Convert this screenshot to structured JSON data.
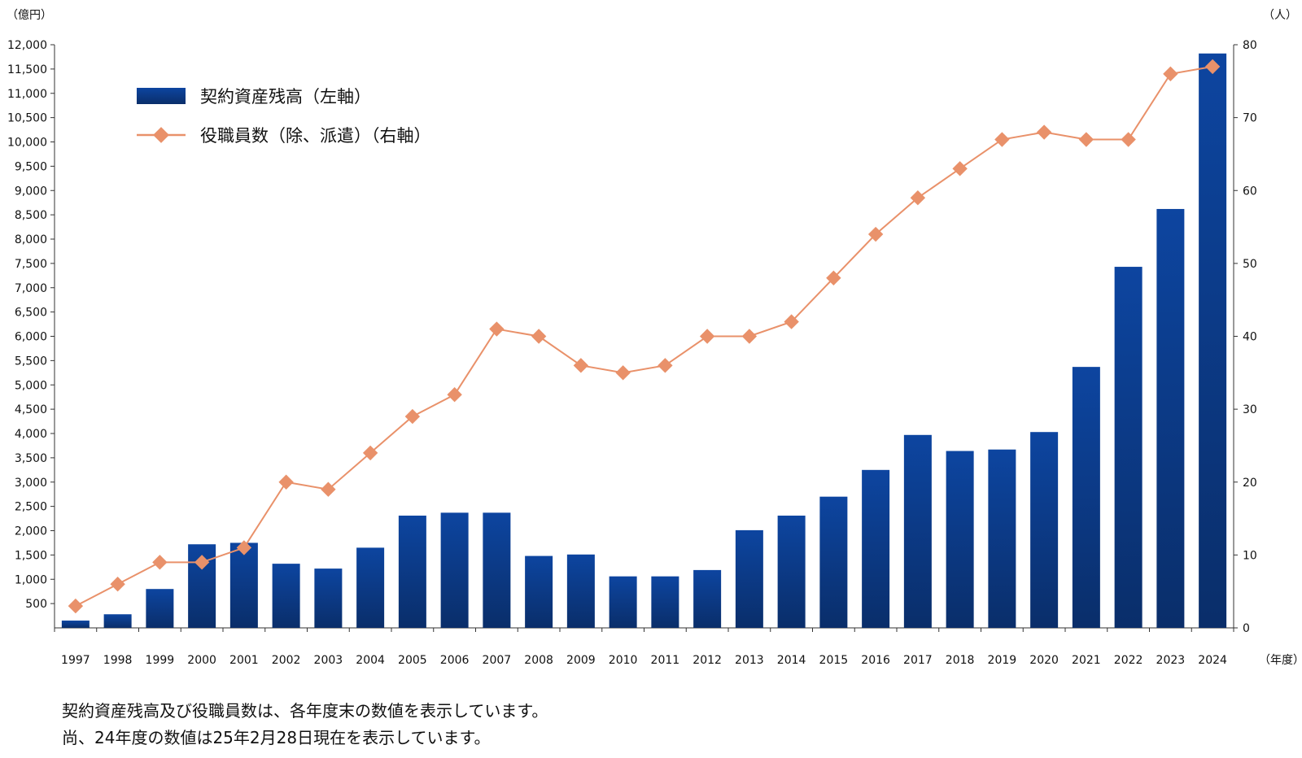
{
  "chart_data": {
    "type": "bar+line",
    "categories": [
      "1997",
      "1998",
      "1999",
      "2000",
      "2001",
      "2002",
      "2003",
      "2004",
      "2005",
      "2006",
      "2007",
      "2008",
      "2009",
      "2010",
      "2011",
      "2012",
      "2013",
      "2014",
      "2015",
      "2016",
      "2017",
      "2018",
      "2019",
      "2020",
      "2021",
      "2022",
      "2023",
      "2024"
    ],
    "left_unit": "（億円）",
    "right_unit": "（人）",
    "x_unit": "（年度）",
    "left_ticks": [
      "500",
      "1,000",
      "1,500",
      "2,000",
      "2,500",
      "3,000",
      "3,500",
      "4,000",
      "4,500",
      "5,000",
      "5,500",
      "6,000",
      "6,500",
      "7,000",
      "7,500",
      "8,000",
      "8,500",
      "9,000",
      "9,500",
      "10,000",
      "10,500",
      "11,000",
      "11,500",
      "12,000"
    ],
    "right_ticks": [
      "0",
      "10",
      "20",
      "30",
      "40",
      "50",
      "60",
      "70",
      "80"
    ],
    "left_ylim": [
      0,
      12000
    ],
    "right_ylim": [
      0,
      80
    ],
    "legend_position": "top-left",
    "grid": false,
    "series": [
      {
        "name": "契約資産残高（左軸）",
        "type": "bar",
        "axis": "left",
        "color": "#0d3d8c",
        "values": [
          150,
          280,
          800,
          1720,
          1750,
          1320,
          1220,
          1650,
          2310,
          2370,
          2370,
          1480,
          1510,
          1060,
          1060,
          1190,
          2010,
          2310,
          2700,
          3250,
          3970,
          3640,
          3670,
          4030,
          5370,
          7430,
          8620,
          11820
        ]
      },
      {
        "name": "役職員数（除、派遣）（右軸）",
        "type": "line",
        "axis": "right",
        "color": "#e9916a",
        "values": [
          3,
          6,
          9,
          9,
          11,
          20,
          19,
          24,
          29,
          32,
          41,
          40,
          36,
          35,
          36,
          40,
          40,
          42,
          48,
          54,
          59,
          63,
          67,
          68,
          67,
          67,
          76,
          77
        ]
      }
    ]
  },
  "notes": [
    "契約資産残高及び役職員数は、各年度末の数値を表示しています。",
    "尚、24年度の数値は25年2月28日現在を表示しています。"
  ]
}
